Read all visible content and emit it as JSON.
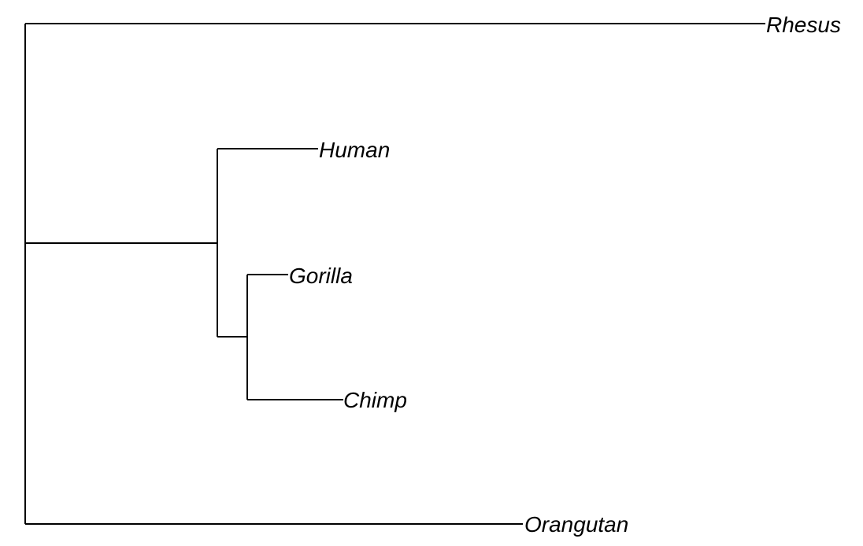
{
  "diagram": {
    "type": "phylogenetic-tree",
    "tips": [
      {
        "id": "rhesus",
        "label": "Rhesus"
      },
      {
        "id": "human",
        "label": "Human"
      },
      {
        "id": "gorilla",
        "label": "Gorilla"
      },
      {
        "id": "chimp",
        "label": "Chimp"
      },
      {
        "id": "orangutan",
        "label": "Orangutan"
      }
    ],
    "topology": "(Rhesus,(Human,(Gorilla,Chimp)),Orangutan)"
  }
}
